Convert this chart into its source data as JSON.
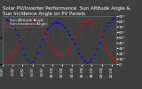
{
  "title": "Solar PV/Inverter Performance  Sun Altitude Angle & Sun Incidence Angle on PV Panels",
  "blue_label": "Sun Altitude Angle",
  "red_label": "Sun Incidence Angle",
  "x_values": [
    0,
    0.5,
    1,
    1.5,
    2,
    2.5,
    3,
    3.5,
    4,
    4.5,
    5,
    5.5,
    6,
    6.5,
    7,
    7.5,
    8,
    8.5,
    9,
    9.5,
    10,
    10.5,
    11,
    11.5,
    12,
    12.5,
    13,
    13.5,
    14,
    14.5,
    15,
    15.5,
    16,
    16.5,
    17,
    17.5,
    18,
    18.5,
    19,
    19.5,
    20,
    20.5,
    21,
    21.5,
    22,
    22.5,
    23
  ],
  "blue_values": [
    88,
    85,
    82,
    78,
    72,
    65,
    55,
    43,
    30,
    18,
    8,
    3,
    5,
    12,
    22,
    34,
    46,
    57,
    66,
    72,
    76,
    78,
    78,
    76,
    73,
    68,
    62,
    55,
    47,
    38,
    29,
    20,
    13,
    7,
    4,
    5,
    10,
    18,
    28,
    40,
    52,
    63,
    72,
    79,
    84,
    87,
    88
  ],
  "red_values": [
    5,
    7,
    10,
    14,
    20,
    27,
    36,
    47,
    58,
    68,
    76,
    82,
    85,
    84,
    80,
    73,
    64,
    54,
    44,
    35,
    27,
    22,
    19,
    18,
    19,
    22,
    27,
    34,
    42,
    51,
    60,
    68,
    75,
    80,
    83,
    84,
    82,
    77,
    69,
    59,
    48,
    37,
    28,
    20,
    14,
    9,
    6
  ],
  "ylim": [
    0,
    90
  ],
  "right_tick_vals": [
    0,
    10,
    20,
    30,
    40,
    50,
    60,
    70,
    80,
    90
  ],
  "right_tick_labels": [
    "0°",
    "10°",
    "20°",
    "30°",
    "40°",
    "50°",
    "60°",
    "70°",
    "80°",
    "90°"
  ],
  "x_tick_positions": [
    0,
    2,
    4,
    6,
    8,
    10,
    12,
    14,
    16,
    18,
    20,
    22
  ],
  "x_tick_labels": [
    "0:00",
    "2:00",
    "4:00",
    "6:00",
    "8:00",
    "10:00",
    "12:00",
    "14:00",
    "16:00",
    "18:00",
    "20:00",
    "22:00"
  ],
  "blue_color": "#0000ff",
  "red_color": "#ff0000",
  "bg_color": "#404040",
  "plot_bg_color": "#404040",
  "grid_color": "#666666",
  "title_color": "#ffffff",
  "tick_color": "#ffffff",
  "title_fontsize": 4.0,
  "tick_fontsize": 3.2,
  "legend_fontsize": 3.0,
  "marker_size": 1.5
}
